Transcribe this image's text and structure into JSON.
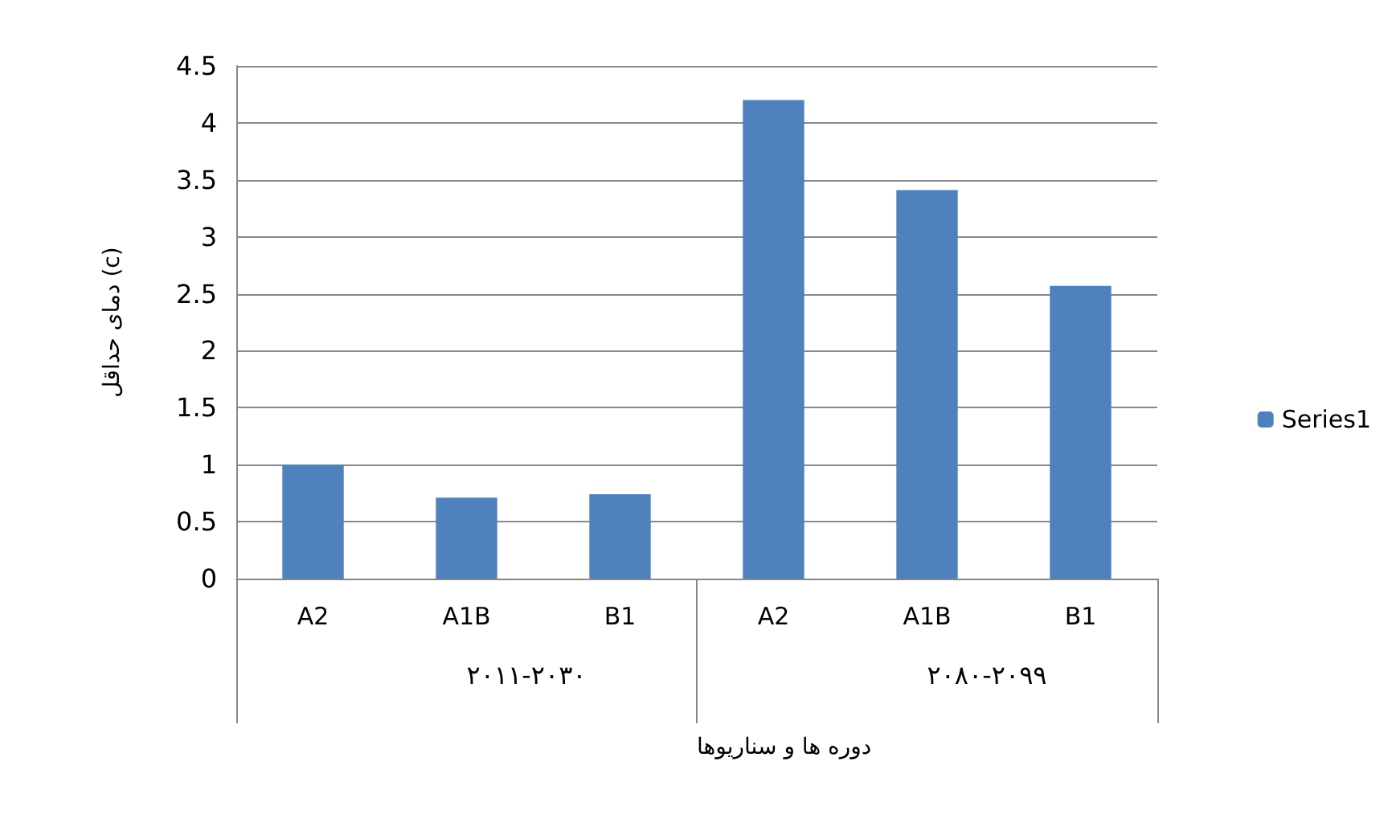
{
  "chart_data": {
    "type": "bar",
    "ylabel": "دمای حداقل (c)",
    "xlabel": "دوره ها و سناریوها",
    "categories": [
      "A2",
      "A1B",
      "B1",
      "A2",
      "A1B",
      "B1"
    ],
    "series": [
      {
        "name": "Series1",
        "color": "#4f81bd",
        "values": [
          1.0,
          0.71,
          0.74,
          4.2,
          3.41,
          2.57
        ]
      }
    ],
    "annotations": [
      "۲۰۱۱-۲۰۳۰",
      "۲۰۸۰-۲۰۹۹"
    ],
    "ylim": [
      0,
      4.5
    ],
    "yticks": [
      0,
      0.5,
      1,
      1.5,
      2,
      2.5,
      3,
      3.5,
      4,
      4.5
    ],
    "grid": "y",
    "legend": "right"
  }
}
